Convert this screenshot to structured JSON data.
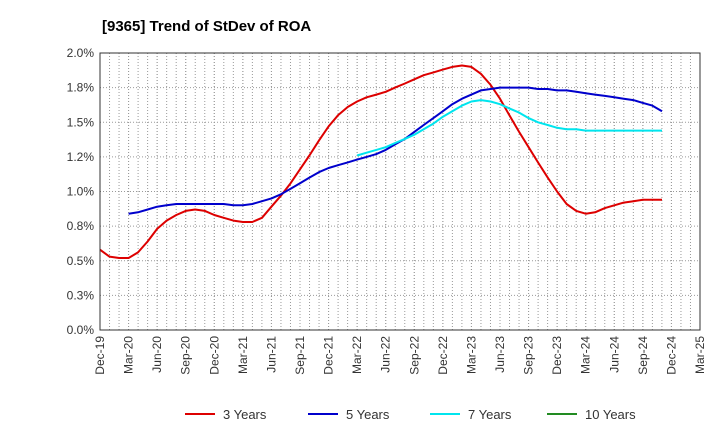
{
  "chart_data": {
    "type": "line",
    "title": "[9365]  Trend of StDev of ROA",
    "xlabel": "",
    "ylabel": "",
    "ylim": [
      0,
      2.0
    ],
    "yticks": [
      "0.0%",
      "0.3%",
      "0.5%",
      "0.8%",
      "1.0%",
      "1.2%",
      "1.5%",
      "1.8%",
      "2.0%"
    ],
    "ytick_values": [
      0,
      0.25,
      0.5,
      0.75,
      1.0,
      1.25,
      1.5,
      1.75,
      2.0
    ],
    "categories": [
      "Dec-19",
      "Mar-20",
      "Jun-20",
      "Sep-20",
      "Dec-20",
      "Mar-21",
      "Jun-21",
      "Sep-21",
      "Dec-21",
      "Mar-22",
      "Jun-22",
      "Sep-22",
      "Dec-22",
      "Mar-23",
      "Jun-23",
      "Sep-23",
      "Dec-23",
      "Mar-24",
      "Jun-24",
      "Sep-24",
      "Dec-24",
      "Mar-25"
    ],
    "grid": true,
    "legend_position": "bottom",
    "series": [
      {
        "name": "3 Years",
        "color": "#dd0000",
        "points": [
          [
            0,
            0.58
          ],
          [
            0.33,
            0.53
          ],
          [
            0.67,
            0.52
          ],
          [
            1,
            0.52
          ],
          [
            1.33,
            0.56
          ],
          [
            1.67,
            0.64
          ],
          [
            2,
            0.73
          ],
          [
            2.33,
            0.79
          ],
          [
            2.67,
            0.83
          ],
          [
            3,
            0.86
          ],
          [
            3.33,
            0.87
          ],
          [
            3.67,
            0.86
          ],
          [
            4,
            0.83
          ],
          [
            4.33,
            0.81
          ],
          [
            4.67,
            0.79
          ],
          [
            5,
            0.78
          ],
          [
            5.33,
            0.78
          ],
          [
            5.67,
            0.81
          ],
          [
            6,
            0.89
          ],
          [
            6.33,
            0.97
          ],
          [
            6.67,
            1.06
          ],
          [
            7,
            1.16
          ],
          [
            7.33,
            1.26
          ],
          [
            7.67,
            1.37
          ],
          [
            8,
            1.47
          ],
          [
            8.33,
            1.55
          ],
          [
            8.67,
            1.61
          ],
          [
            9,
            1.65
          ],
          [
            9.33,
            1.68
          ],
          [
            9.67,
            1.7
          ],
          [
            10,
            1.72
          ],
          [
            10.33,
            1.75
          ],
          [
            10.67,
            1.78
          ],
          [
            11,
            1.81
          ],
          [
            11.33,
            1.84
          ],
          [
            11.67,
            1.86
          ],
          [
            12,
            1.88
          ],
          [
            12.33,
            1.9
          ],
          [
            12.67,
            1.91
          ],
          [
            13,
            1.9
          ],
          [
            13.33,
            1.85
          ],
          [
            13.67,
            1.77
          ],
          [
            14,
            1.67
          ],
          [
            14.33,
            1.55
          ],
          [
            14.67,
            1.43
          ],
          [
            15,
            1.32
          ],
          [
            15.33,
            1.21
          ],
          [
            15.67,
            1.1
          ],
          [
            16,
            1.0
          ],
          [
            16.33,
            0.91
          ],
          [
            16.67,
            0.86
          ],
          [
            17,
            0.84
          ],
          [
            17.33,
            0.85
          ],
          [
            17.67,
            0.88
          ],
          [
            18,
            0.9
          ],
          [
            18.33,
            0.92
          ],
          [
            18.67,
            0.93
          ],
          [
            19,
            0.94
          ],
          [
            19.33,
            0.94
          ],
          [
            19.67,
            0.94
          ]
        ]
      },
      {
        "name": "5 Years",
        "color": "#0000cc",
        "points": [
          [
            1,
            0.84
          ],
          [
            1.33,
            0.85
          ],
          [
            1.67,
            0.87
          ],
          [
            2,
            0.89
          ],
          [
            2.33,
            0.9
          ],
          [
            2.67,
            0.91
          ],
          [
            3,
            0.91
          ],
          [
            3.33,
            0.91
          ],
          [
            3.67,
            0.91
          ],
          [
            4,
            0.91
          ],
          [
            4.33,
            0.91
          ],
          [
            4.67,
            0.9
          ],
          [
            5,
            0.9
          ],
          [
            5.33,
            0.91
          ],
          [
            5.67,
            0.93
          ],
          [
            6,
            0.95
          ],
          [
            6.33,
            0.98
          ],
          [
            6.67,
            1.02
          ],
          [
            7,
            1.06
          ],
          [
            7.33,
            1.1
          ],
          [
            7.67,
            1.14
          ],
          [
            8,
            1.17
          ],
          [
            8.33,
            1.19
          ],
          [
            8.67,
            1.21
          ],
          [
            9,
            1.23
          ],
          [
            9.33,
            1.25
          ],
          [
            9.67,
            1.27
          ],
          [
            10,
            1.3
          ],
          [
            10.33,
            1.34
          ],
          [
            10.67,
            1.38
          ],
          [
            11,
            1.43
          ],
          [
            11.33,
            1.48
          ],
          [
            11.67,
            1.53
          ],
          [
            12,
            1.58
          ],
          [
            12.33,
            1.63
          ],
          [
            12.67,
            1.67
          ],
          [
            13,
            1.7
          ],
          [
            13.33,
            1.73
          ],
          [
            13.67,
            1.74
          ],
          [
            14,
            1.75
          ],
          [
            14.33,
            1.75
          ],
          [
            14.67,
            1.75
          ],
          [
            15,
            1.75
          ],
          [
            15.33,
            1.74
          ],
          [
            15.67,
            1.74
          ],
          [
            16,
            1.73
          ],
          [
            16.33,
            1.73
          ],
          [
            16.67,
            1.72
          ],
          [
            17,
            1.71
          ],
          [
            17.33,
            1.7
          ],
          [
            17.67,
            1.69
          ],
          [
            18,
            1.68
          ],
          [
            18.33,
            1.67
          ],
          [
            18.67,
            1.66
          ],
          [
            19,
            1.64
          ],
          [
            19.33,
            1.62
          ],
          [
            19.67,
            1.58
          ]
        ]
      },
      {
        "name": "7 Years",
        "color": "#00e5ee",
        "points": [
          [
            9,
            1.26
          ],
          [
            9.33,
            1.28
          ],
          [
            9.67,
            1.3
          ],
          [
            10,
            1.32
          ],
          [
            10.33,
            1.35
          ],
          [
            10.67,
            1.38
          ],
          [
            11,
            1.41
          ],
          [
            11.33,
            1.45
          ],
          [
            11.67,
            1.49
          ],
          [
            12,
            1.54
          ],
          [
            12.33,
            1.58
          ],
          [
            12.67,
            1.62
          ],
          [
            13,
            1.65
          ],
          [
            13.33,
            1.66
          ],
          [
            13.67,
            1.65
          ],
          [
            14,
            1.63
          ],
          [
            14.33,
            1.6
          ],
          [
            14.67,
            1.57
          ],
          [
            15,
            1.53
          ],
          [
            15.33,
            1.5
          ],
          [
            15.67,
            1.48
          ],
          [
            16,
            1.46
          ],
          [
            16.33,
            1.45
          ],
          [
            16.67,
            1.45
          ],
          [
            17,
            1.44
          ],
          [
            17.33,
            1.44
          ],
          [
            17.67,
            1.44
          ],
          [
            18,
            1.44
          ],
          [
            18.33,
            1.44
          ],
          [
            18.67,
            1.44
          ],
          [
            19,
            1.44
          ],
          [
            19.33,
            1.44
          ],
          [
            19.67,
            1.44
          ]
        ]
      },
      {
        "name": "10 Years",
        "color": "#228b22",
        "points": []
      }
    ]
  }
}
